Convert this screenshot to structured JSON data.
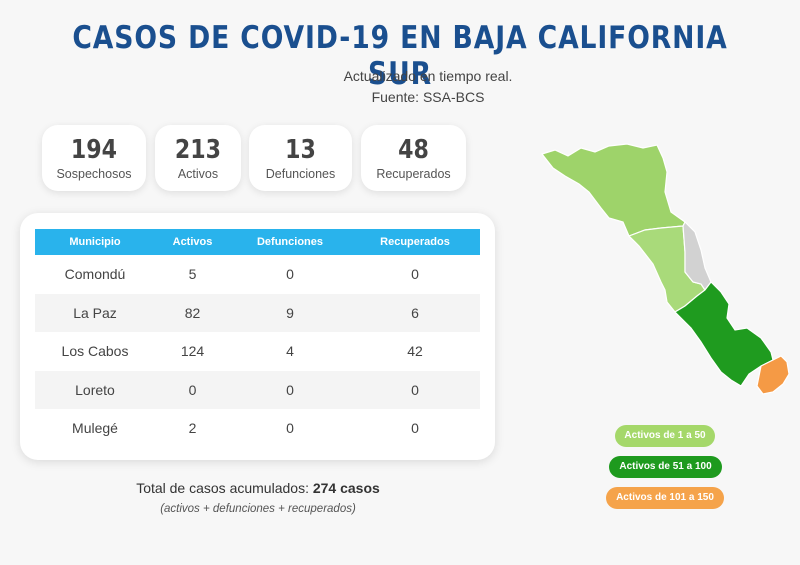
{
  "header": {
    "title": "CASOS DE COVID-19 EN BAJA CALIFORNIA SUR",
    "subtitle1": "Actualizado en tiempo real.",
    "subtitle2": "Fuente: SSA-BCS"
  },
  "stats": [
    {
      "value": "194",
      "label": "Sospechosos"
    },
    {
      "value": "213",
      "label": "Activos"
    },
    {
      "value": "13",
      "label": "Defunciones"
    },
    {
      "value": "48",
      "label": "Recuperados"
    }
  ],
  "table": {
    "headers": [
      "Municipio",
      "Activos",
      "Defunciones",
      "Recuperados"
    ],
    "rows": [
      [
        "Comondú",
        "5",
        "0",
        "0"
      ],
      [
        "La Paz",
        "82",
        "9",
        "6"
      ],
      [
        "Los Cabos",
        "124",
        "4",
        "42"
      ],
      [
        "Loreto",
        "0",
        "0",
        "0"
      ],
      [
        "Mulegé",
        "2",
        "0",
        "0"
      ]
    ]
  },
  "total": {
    "label": "Total de casos acumulados:",
    "value": "274 casos",
    "note": "(activos + defunciones + recuperados)"
  },
  "legend": [
    {
      "label": "Activos de 1 a 50",
      "color": "#a5d86a"
    },
    {
      "label": "Activos de 51 a 100",
      "color": "#1e9a1e"
    },
    {
      "label": "Activos de 101 a 150",
      "color": "#f5a34a"
    }
  ],
  "map_colors": {
    "mulege": "#9ed36a",
    "comondu": "#a9da7a",
    "loreto": "#d2d2d2",
    "la_paz": "#1f9b1f",
    "los_cabos": "#f59a45"
  }
}
